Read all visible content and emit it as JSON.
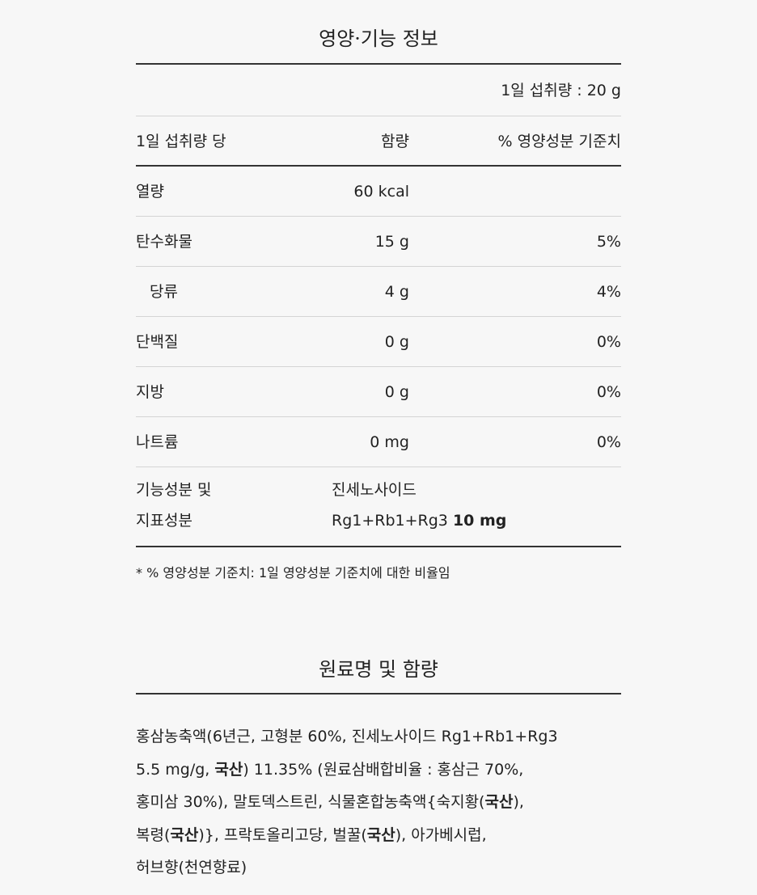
{
  "nutrition": {
    "title": "영양·기능 정보",
    "serving": "1일 섭취량 : 20 g",
    "headers": {
      "per": "1일 섭취량 당",
      "amount": "함량",
      "dv": "% 영양성분 기준치"
    },
    "rows": [
      {
        "name": "열량",
        "amount": "60 kcal",
        "dv": ""
      },
      {
        "name": "탄수화물",
        "amount": "15 g",
        "dv": "5%"
      },
      {
        "name": "당류",
        "amount": "4 g",
        "dv": "4%"
      },
      {
        "name": "단백질",
        "amount": "0 g",
        "dv": "0%"
      },
      {
        "name": "지방",
        "amount": "0 g",
        "dv": "0%"
      },
      {
        "name": "나트륨",
        "amount": "0 mg",
        "dv": "0%"
      }
    ],
    "functional": {
      "label_line1": "기능성분 및",
      "label_line2": "지표성분",
      "value_line1": "진세노사이드",
      "value_line2": "Rg1+Rb1+Rg3 ",
      "value_bold": "10 mg"
    },
    "footnote": "* % 영양성분 기준치: 1일 영양성분 기준치에 대한 비율임"
  },
  "ingredients": {
    "title": "원료명 및 함량",
    "lines": [
      [
        {
          "text": "홍삼농축액(6년근, 고형분 60%, 진세노사이드 Rg1+Rb1+Rg3",
          "bold": false
        }
      ],
      [
        {
          "text": "5.5 mg/g, ",
          "bold": false
        },
        {
          "text": "국산",
          "bold": true
        },
        {
          "text": ") 11.35% (원료삼배합비율 : 홍삼근 70%,",
          "bold": false
        }
      ],
      [
        {
          "text": "홍미삼 30%), 말토덱스트린, 식물혼합농축액{숙지황(",
          "bold": false
        },
        {
          "text": "국산",
          "bold": true
        },
        {
          "text": "),",
          "bold": false
        }
      ],
      [
        {
          "text": "복령(",
          "bold": false
        },
        {
          "text": "국산",
          "bold": true
        },
        {
          "text": ")}, 프락토올리고당, 벌꿀(",
          "bold": false
        },
        {
          "text": "국산",
          "bold": true
        },
        {
          "text": "), 아가베시럽,",
          "bold": false
        }
      ],
      [
        {
          "text": "허브향(천연향료)",
          "bold": false
        }
      ]
    ]
  }
}
